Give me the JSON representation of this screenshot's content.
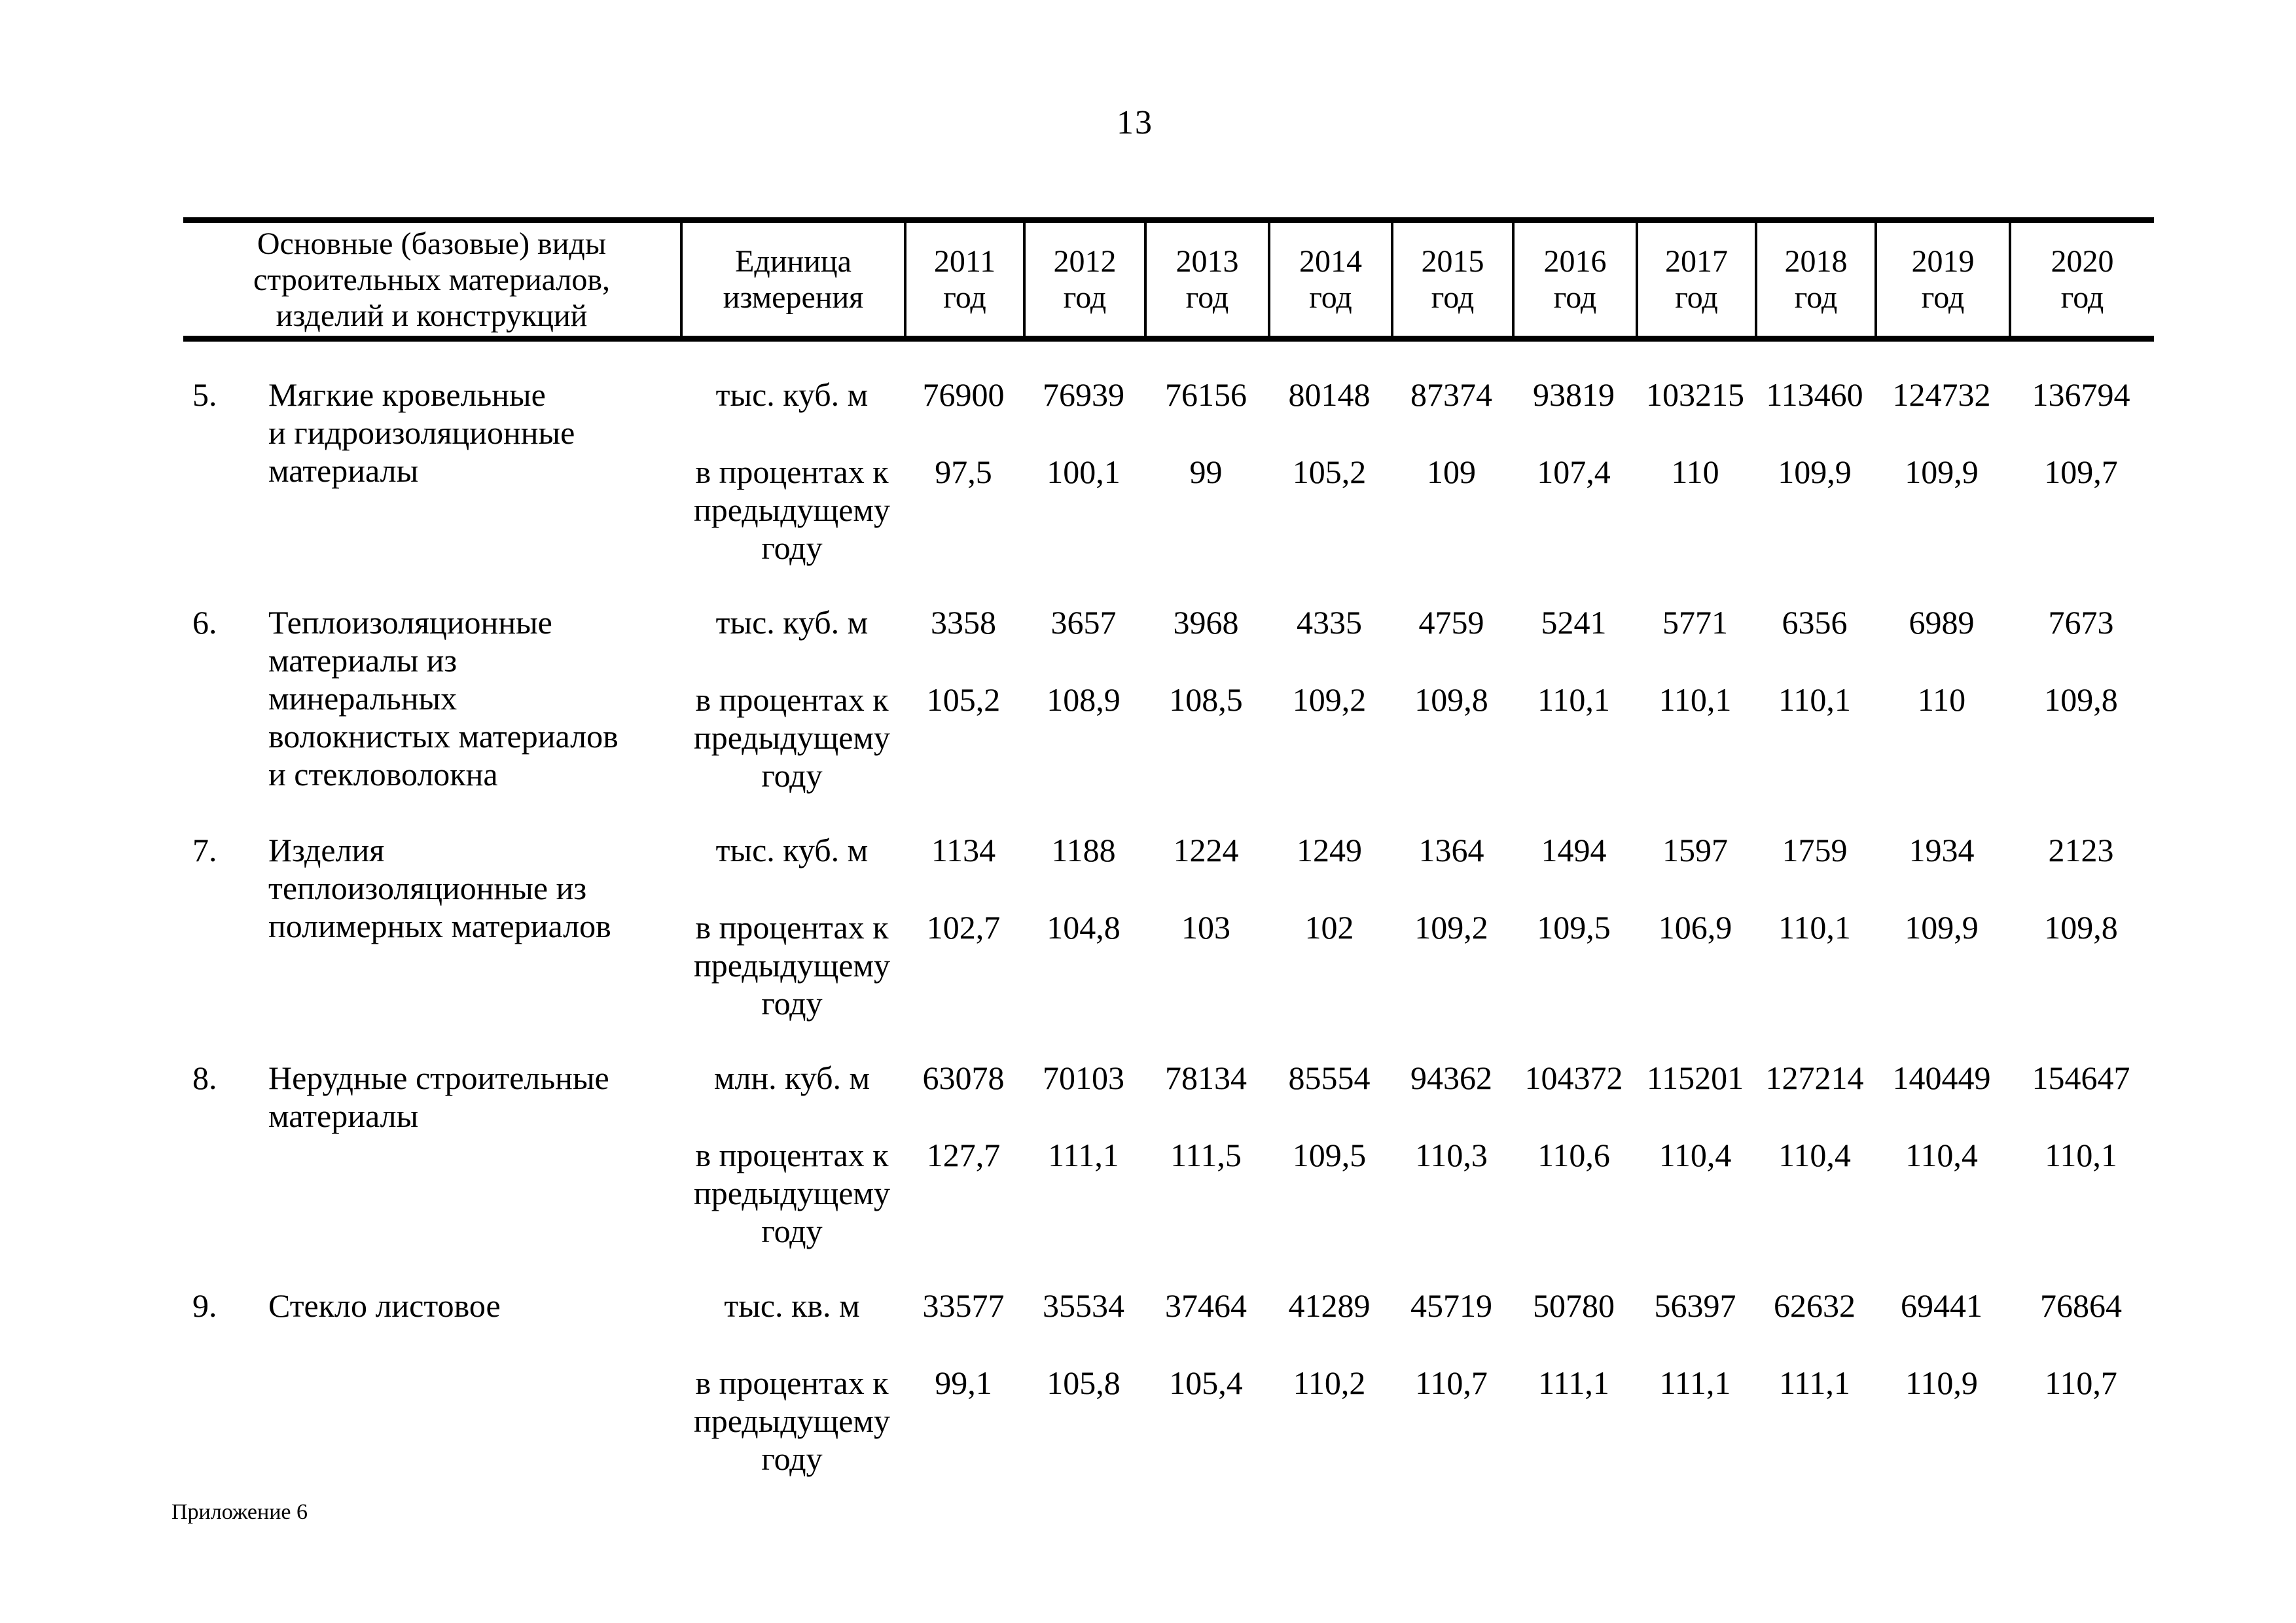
{
  "page": {
    "number": "13",
    "footer": "Приложение 6"
  },
  "table": {
    "header": {
      "name_column": "Основные (базовые) виды\nстроительных материалов,\nизделий и конструкций",
      "unit_column": "Единица\nизмерения",
      "years": [
        "2011\nгод",
        "2012\nгод",
        "2013\nгод",
        "2014\nгод",
        "2015\nгод",
        "2016\nгод",
        "2017\nгод",
        "2018\nгод",
        "2019\nгод",
        "2020\nгод"
      ]
    },
    "rows": [
      {
        "num": "5.",
        "name": "Мягкие кровельные\nи гидроизоляционные\nматериалы",
        "unit_physical": "тыс. куб. м",
        "values_physical": [
          "76900",
          "76939",
          "76156",
          "80148",
          "87374",
          "93819",
          "103215",
          "113460",
          "124732",
          "136794"
        ],
        "unit_percent": "в процентах к\nпредыдущему\nгоду",
        "values_percent": [
          "97,5",
          "100,1",
          "99",
          "105,2",
          "109",
          "107,4",
          "110",
          "109,9",
          "109,9",
          "109,7"
        ]
      },
      {
        "num": "6.",
        "name": "Теплоизоляционные\nматериалы из\nминеральных\nволокнистых материалов\nи стекловолокна",
        "unit_physical": "тыс. куб. м",
        "values_physical": [
          "3358",
          "3657",
          "3968",
          "4335",
          "4759",
          "5241",
          "5771",
          "6356",
          "6989",
          "7673"
        ],
        "unit_percent": "в процентах к\nпредыдущему\nгоду",
        "values_percent": [
          "105,2",
          "108,9",
          "108,5",
          "109,2",
          "109,8",
          "110,1",
          "110,1",
          "110,1",
          "110",
          "109,8"
        ]
      },
      {
        "num": "7.",
        "name": "Изделия\nтеплоизоляционные из\nполимерных материалов",
        "unit_physical": "тыс. куб. м",
        "values_physical": [
          "1134",
          "1188",
          "1224",
          "1249",
          "1364",
          "1494",
          "1597",
          "1759",
          "1934",
          "2123"
        ],
        "unit_percent": "в процентах к\nпредыдущему\nгоду",
        "values_percent": [
          "102,7",
          "104,8",
          "103",
          "102",
          "109,2",
          "109,5",
          "106,9",
          "110,1",
          "109,9",
          "109,8"
        ]
      },
      {
        "num": "8.",
        "name": "Нерудные строительные\nматериалы",
        "unit_physical": "млн. куб. м",
        "values_physical": [
          "63078",
          "70103",
          "78134",
          "85554",
          "94362",
          "104372",
          "115201",
          "127214",
          "140449",
          "154647"
        ],
        "unit_percent": "в процентах к\nпредыдущему\nгоду",
        "values_percent": [
          "127,7",
          "111,1",
          "111,5",
          "109,5",
          "110,3",
          "110,6",
          "110,4",
          "110,4",
          "110,4",
          "110,1"
        ]
      },
      {
        "num": "9.",
        "name": "Стекло листовое",
        "unit_physical": "тыс. кв. м",
        "values_physical": [
          "33577",
          "35534",
          "37464",
          "41289",
          "45719",
          "50780",
          "56397",
          "62632",
          "69441",
          "76864"
        ],
        "unit_percent": "в процентах к\nпредыдущему\nгоду",
        "values_percent": [
          "99,1",
          "105,8",
          "105,4",
          "110,2",
          "110,7",
          "111,1",
          "111,1",
          "111,1",
          "110,9",
          "110,7"
        ]
      }
    ]
  }
}
